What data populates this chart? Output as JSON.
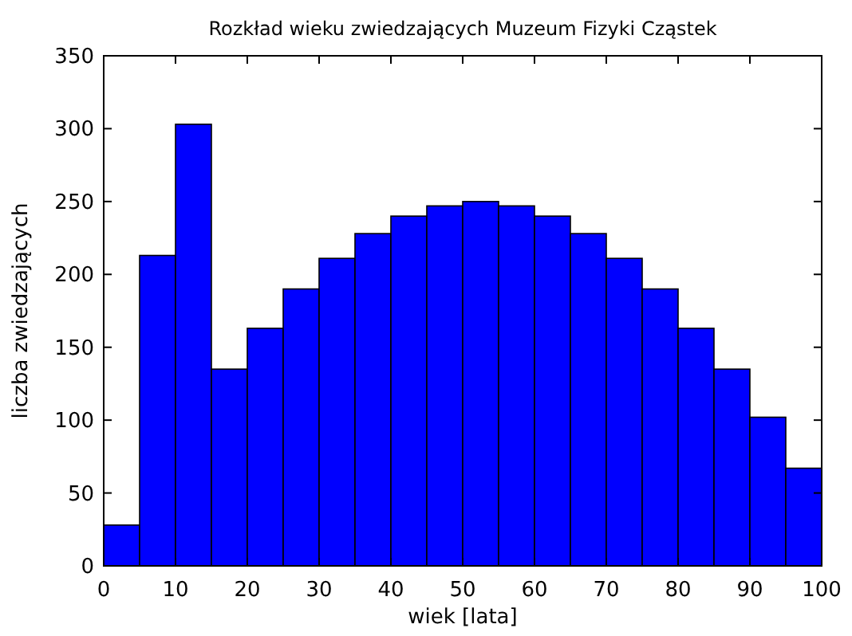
{
  "chart_data": {
    "type": "histogram",
    "title": "Rozkład wieku zwiedzających Muzeum Fizyki Cząstek",
    "xlabel": "wiek [lata]",
    "ylabel": "liczba zwiedzających",
    "bins": [
      0,
      5,
      10,
      15,
      20,
      25,
      30,
      35,
      40,
      45,
      50,
      55,
      60,
      65,
      70,
      75,
      80,
      85,
      90,
      95,
      100
    ],
    "values": [
      28,
      213,
      303,
      135,
      163,
      190,
      211,
      228,
      240,
      247,
      250,
      247,
      240,
      228,
      211,
      190,
      163,
      135,
      102,
      67
    ],
    "color": "#0000ff",
    "xlim": [
      0,
      100
    ],
    "xticks": [
      0,
      10,
      20,
      30,
      40,
      50,
      60,
      70,
      80,
      90,
      100
    ],
    "ylim": [
      0,
      350
    ],
    "yticks": [
      0,
      50,
      100,
      150,
      200,
      250,
      300,
      350
    ],
    "grid": false
  }
}
